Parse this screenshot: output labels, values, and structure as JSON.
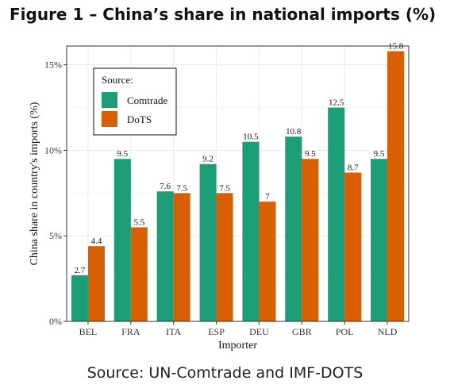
{
  "figure": {
    "title": "Figure 1 – China’s share in national imports (%)",
    "source": "Source: UN-Comtrade and IMF-DOTS"
  },
  "chart_data": {
    "type": "bar",
    "categories": [
      "BEL",
      "FRA",
      "ITA",
      "ESP",
      "DEU",
      "GBR",
      "POL",
      "NLD"
    ],
    "series": [
      {
        "name": "Comtrade",
        "color": "#1b9e77",
        "values": [
          2.7,
          9.5,
          7.6,
          9.2,
          10.5,
          10.8,
          12.5,
          9.5
        ],
        "labels": [
          "2.7",
          "9.5",
          "7.6",
          "9.2",
          "10.5",
          "10.8",
          "12.5",
          "9.5"
        ]
      },
      {
        "name": "DoTS",
        "color": "#d95f02",
        "values": [
          4.4,
          5.5,
          7.5,
          7.5,
          7,
          9.5,
          8.7,
          15.8
        ],
        "labels": [
          "4.4",
          "5.5",
          "7.5",
          "7.5",
          "7",
          "9.5",
          "8.7",
          "15.8"
        ]
      }
    ],
    "xlabel": "Importer",
    "ylabel": "China share in country's imports (%)",
    "ylim": [
      0,
      16.1
    ],
    "yticks": [
      0,
      5,
      10,
      15
    ],
    "ytick_labels": [
      "0%",
      "5%",
      "10%",
      "15%"
    ],
    "legend_title": "Source:",
    "legend_position": "top-left",
    "grid": true
  }
}
